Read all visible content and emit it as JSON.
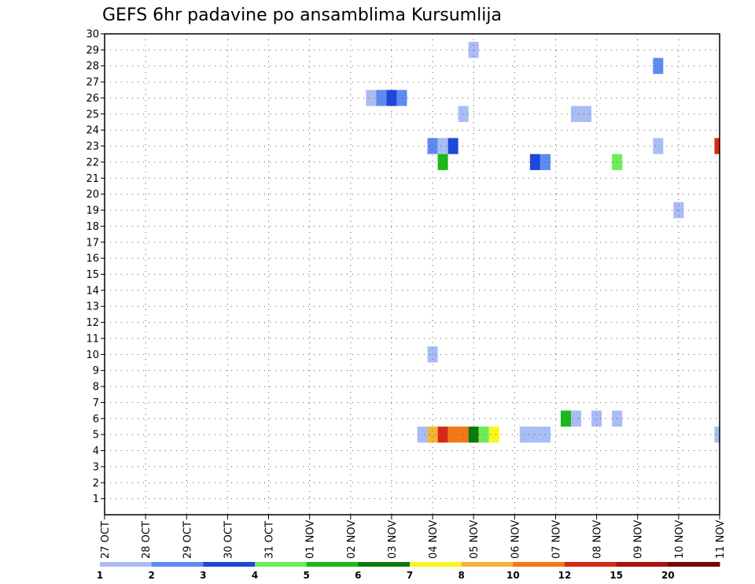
{
  "chart_data": {
    "type": "heatmap",
    "title": "GEFS 6hr padavine po ansamblima Kursumlija",
    "xlabel": "",
    "ylabel": "",
    "x_tick_labels": [
      "27 OCT",
      "28 OCT",
      "29 OCT",
      "30 OCT",
      "31 OCT",
      "01 NOV",
      "02 NOV",
      "03 NOV",
      "04 NOV",
      "05 NOV",
      "06 NOV",
      "07 NOV",
      "08 NOV",
      "09 NOV",
      "10 NOV",
      "11 NOV"
    ],
    "xlim": [
      0,
      15
    ],
    "y_tick_labels": [
      "1",
      "2",
      "3",
      "4",
      "5",
      "6",
      "7",
      "8",
      "9",
      "10",
      "11",
      "12",
      "13",
      "14",
      "15",
      "16",
      "17",
      "18",
      "19",
      "20",
      "21",
      "22",
      "23",
      "24",
      "25",
      "26",
      "27",
      "28",
      "29",
      "30"
    ],
    "ylim": [
      0,
      30
    ],
    "x_unit": "days from 27 OCT, 6-hour steps",
    "grid": true,
    "legend": {
      "placement": "bottom",
      "colors": [
        "#a9bdf5",
        "#5f8af0",
        "#1f47dc",
        "#6ded58",
        "#1bb81b",
        "#0b7a0b",
        "#f7f71e",
        "#f7b23a",
        "#f37714",
        "#d62a16",
        "#a8130e",
        "#6e0b0b"
      ],
      "labels": [
        "1",
        "2",
        "3",
        "4",
        "5",
        "6",
        "7",
        "8",
        "10",
        "12",
        "15",
        "20"
      ]
    },
    "cells": [
      {
        "x": 9.0,
        "y": 29,
        "v": 1
      },
      {
        "x": 13.5,
        "y": 28,
        "v": 2
      },
      {
        "x": 6.5,
        "y": 26,
        "v": 1
      },
      {
        "x": 6.75,
        "y": 26,
        "v": 2
      },
      {
        "x": 7.0,
        "y": 26,
        "v": 3
      },
      {
        "x": 7.25,
        "y": 26,
        "v": 2
      },
      {
        "x": 8.75,
        "y": 25,
        "v": 1
      },
      {
        "x": 11.5,
        "y": 25,
        "v": 1
      },
      {
        "x": 11.75,
        "y": 25,
        "v": 1
      },
      {
        "x": 8.0,
        "y": 23,
        "v": 2
      },
      {
        "x": 8.25,
        "y": 23,
        "v": 1
      },
      {
        "x": 8.5,
        "y": 23,
        "v": 3
      },
      {
        "x": 13.5,
        "y": 23,
        "v": 1
      },
      {
        "x": 15.0,
        "y": 23,
        "v": 12
      },
      {
        "x": 8.25,
        "y": 22,
        "v": 5
      },
      {
        "x": 10.5,
        "y": 22,
        "v": 3
      },
      {
        "x": 10.75,
        "y": 22,
        "v": 2
      },
      {
        "x": 12.5,
        "y": 22,
        "v": 4
      },
      {
        "x": 14.0,
        "y": 19,
        "v": 1
      },
      {
        "x": 8.0,
        "y": 10,
        "v": 1
      },
      {
        "x": 11.25,
        "y": 6,
        "v": 5
      },
      {
        "x": 11.5,
        "y": 6,
        "v": 1
      },
      {
        "x": 12.0,
        "y": 6,
        "v": 1
      },
      {
        "x": 12.5,
        "y": 6,
        "v": 1
      },
      {
        "x": 7.75,
        "y": 5,
        "v": 1
      },
      {
        "x": 8.0,
        "y": 5,
        "v": 8
      },
      {
        "x": 8.25,
        "y": 5,
        "v": 12
      },
      {
        "x": 8.5,
        "y": 5,
        "v": 10
      },
      {
        "x": 8.75,
        "y": 5,
        "v": 10
      },
      {
        "x": 9.0,
        "y": 5,
        "v": 6
      },
      {
        "x": 9.25,
        "y": 5,
        "v": 4
      },
      {
        "x": 9.5,
        "y": 5,
        "v": 7
      },
      {
        "x": 10.25,
        "y": 5,
        "v": 1
      },
      {
        "x": 10.5,
        "y": 5,
        "v": 1
      },
      {
        "x": 10.75,
        "y": 5,
        "v": 1
      },
      {
        "x": 15.0,
        "y": 5,
        "v": 1
      }
    ]
  }
}
